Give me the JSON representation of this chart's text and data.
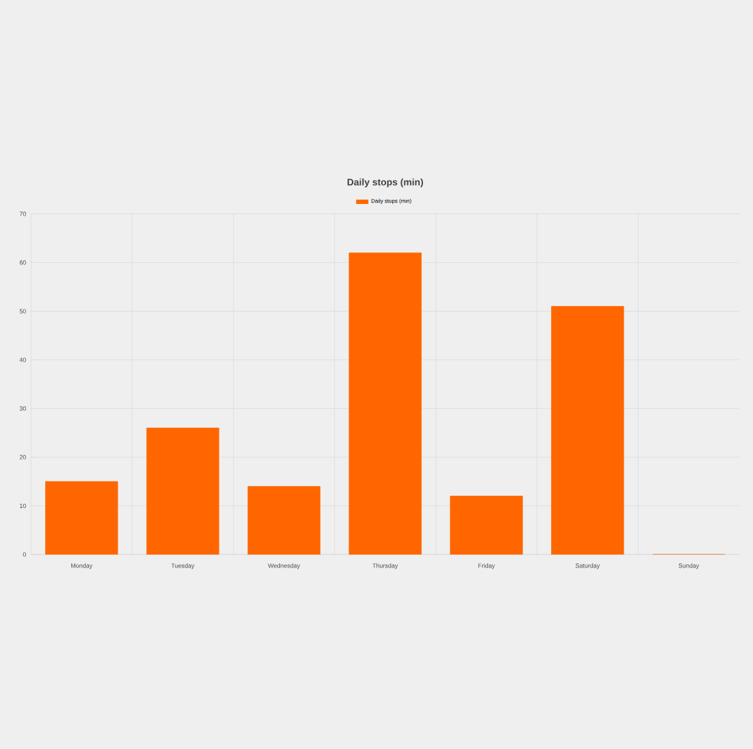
{
  "chart_data": {
    "type": "bar",
    "title": "Daily stops (min)",
    "categories": [
      "Monday",
      "Tuesday",
      "Wednesday",
      "Thursday",
      "Friday",
      "Saturday",
      "Sunday"
    ],
    "series": [
      {
        "name": "Daily stops (min)",
        "color": "#ff6600",
        "values": [
          15,
          26,
          14,
          62,
          12,
          51,
          0
        ]
      }
    ],
    "ylim": [
      0,
      70
    ],
    "yticks": [
      0,
      10,
      20,
      30,
      40,
      50,
      60,
      70
    ],
    "grid": true,
    "legend": "top"
  }
}
